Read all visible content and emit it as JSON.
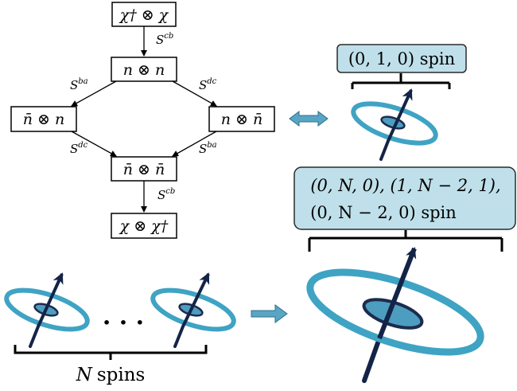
{
  "flow": {
    "top": "χ† ⊗ χ",
    "n_n": "n ⊗ n",
    "nbar_n": "n̄ ⊗ n",
    "n_nbar": "n ⊗ n̄",
    "nbar_nbar": "n̄ ⊗ n̄",
    "bottom": "χ ⊗ χ†",
    "labels": {
      "s_cb_top": "S",
      "s_cb_top_sup": "cb",
      "s_ba_left": "S",
      "s_ba_left_sup": "ba",
      "s_dc_right": "S",
      "s_dc_right_sup": "dc",
      "s_dc_left": "S",
      "s_dc_left_sup": "dc",
      "s_ba_right": "S",
      "s_ba_right_sup": "ba",
      "s_cb_bottom": "S",
      "s_cb_bottom_sup": "cb"
    }
  },
  "spin_single": {
    "label": "(0, 1, 0) spin"
  },
  "spin_combined": {
    "line1": "(0, N, 0), (1, N − 2, 1),",
    "line2": "(0, N − 2, 0) spin"
  },
  "spins_left": {
    "label_var": "N",
    "label_word": "spins",
    "ellipsis": "· · ·"
  },
  "colors": {
    "ring": "#3fa3c4",
    "core": "#4d9dc0",
    "core_outline": "#1d2b4d",
    "arrow": "#132447",
    "bubble": "#bfe0ea",
    "bubble_border": "#2a2a2a",
    "double_arrow": "#58a6c4"
  }
}
